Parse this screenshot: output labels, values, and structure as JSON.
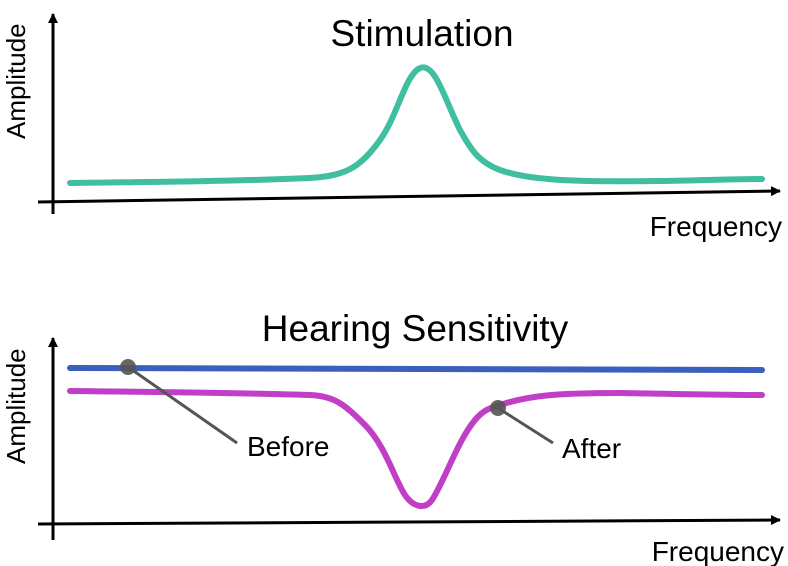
{
  "top_panel": {
    "title": "Stimulation",
    "xlabel": "Frequency",
    "ylabel": "Amplitude",
    "curve_color": "#3fbf9f",
    "shape": "flat baseline with a single peak near the center of the frequency axis"
  },
  "bottom_panel": {
    "title": "Hearing Sensitivity",
    "xlabel": "Frequency",
    "ylabel": "Amplitude",
    "before_label": "Before",
    "after_label": "After",
    "before_color": "#3a5fbf",
    "after_color": "#c13fc6",
    "marker_color": "#555555",
    "shape_before": "flat line",
    "shape_after": "flat line with a notch (dip) near the center of the frequency axis"
  },
  "axis_color": "#000000"
}
